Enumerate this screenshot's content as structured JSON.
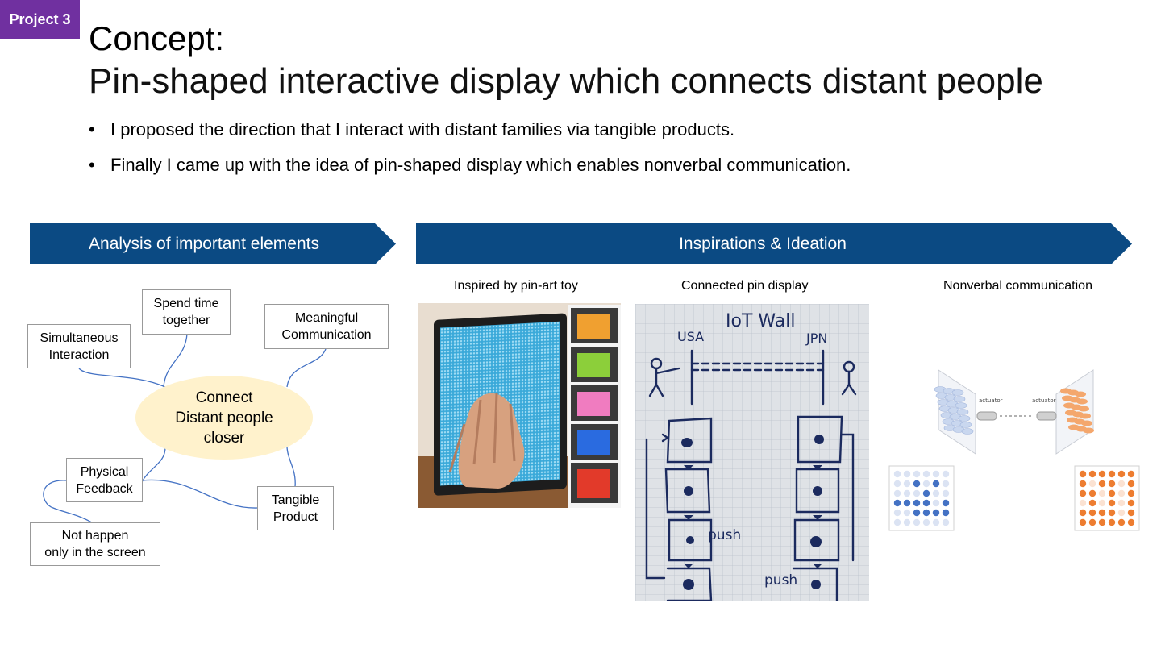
{
  "tag": "Project 3",
  "title": {
    "line1": "Concept:",
    "line2": "Pin-shaped interactive display which connects distant people"
  },
  "bullets": [
    "I proposed the direction that I interact with distant families via tangible products.",
    "Finally I came up with the idea of pin-shaped display which enables nonverbal communication."
  ],
  "left_banner": "Analysis of important elements",
  "right_banner": "Inspirations & Ideation",
  "mindmap": {
    "center": "Connect\nDistant people\ncloser",
    "nodes": {
      "spend_time": "Spend time\ntogether",
      "simultaneous": "Simultaneous\nInteraction",
      "meaningful": "Meaningful\nCommunication",
      "physical": "Physical\nFeedback",
      "tangible": "Tangible\nProduct",
      "not_screen": "Not happen\nonly in the screen"
    }
  },
  "captions": {
    "pin_art": "Inspired by pin-art toy",
    "connected": "Connected pin display",
    "nonverbal": "Nonverbal communication"
  },
  "sketch": {
    "title": "IoT Wall",
    "left": "USA",
    "right": "JPN",
    "push1": "push",
    "push2": "push"
  },
  "diagram": {
    "actuator_left": "actuator",
    "actuator_right": "actuator"
  },
  "colors": {
    "tag": "#7030A0",
    "banner": "#0B4A83",
    "center": "#FFF2CC",
    "connector": "#4472C4",
    "blue_pin": "#4472C4",
    "orange_pin": "#ED7D31"
  }
}
